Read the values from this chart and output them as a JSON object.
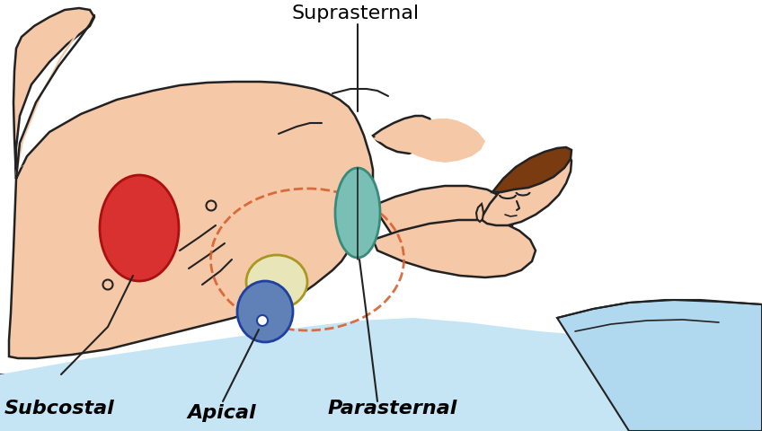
{
  "skin_color": "#f5c8a8",
  "skin_outline": "#222222",
  "hair_color": "#7b3b10",
  "sheet_color": "#c5e5f5",
  "sheet_color2": "#b0d8ee",
  "pillow_color": "#e8f4fc",
  "red_oval_fc": "#d93030",
  "red_oval_ec": "#aa1010",
  "teal_oval_fc": "#7abfb5",
  "teal_oval_ec": "#3a8a7a",
  "apical_cream_fc": "#e8e5b8",
  "apical_cream_ec": "#a89820",
  "apical_blue_fc": "#6080b8",
  "apical_blue_ec": "#2040a0",
  "dashed_ec": "#d86030",
  "label_subcostal": "Subcostal",
  "label_apical": "Apical",
  "label_parasternal": "Parasternal",
  "label_suprasternal": "Suprasternal",
  "line_color": "#222222",
  "figsize": [
    8.48,
    4.81
  ],
  "dpi": 100
}
